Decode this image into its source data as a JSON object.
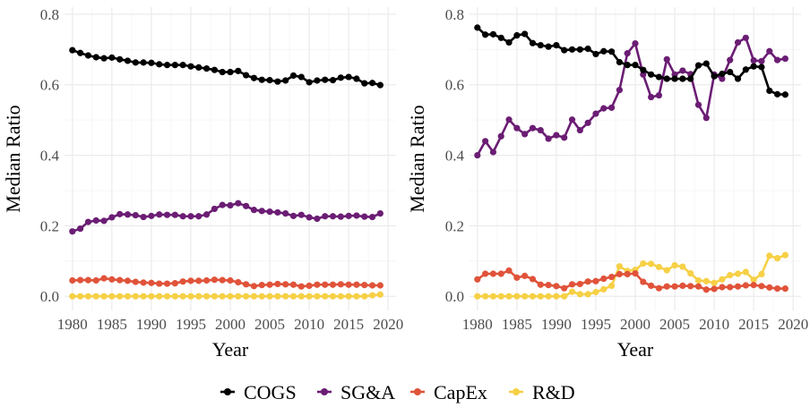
{
  "chart_data": [
    {
      "type": "line",
      "xlabel": "Year",
      "ylabel": "Median Ratio",
      "xlim": [
        1979,
        2021
      ],
      "ylim": [
        -0.04,
        0.82
      ],
      "x_ticks": [
        1980,
        1985,
        1990,
        1995,
        2000,
        2005,
        2010,
        2015,
        2020
      ],
      "y_ticks": [
        0.0,
        0.2,
        0.4,
        0.6,
        0.8
      ],
      "y_tick_labels": [
        "0.0",
        "0.2",
        "0.4",
        "0.6",
        "0.8"
      ],
      "grid": true,
      "x": [
        1980,
        1981,
        1982,
        1983,
        1984,
        1985,
        1986,
        1987,
        1988,
        1989,
        1990,
        1991,
        1992,
        1993,
        1994,
        1995,
        1996,
        1997,
        1998,
        1999,
        2000,
        2001,
        2002,
        2003,
        2004,
        2005,
        2006,
        2007,
        2008,
        2009,
        2010,
        2011,
        2012,
        2013,
        2014,
        2015,
        2016,
        2017,
        2018,
        2019
      ],
      "series": [
        {
          "name": "COGS",
          "values": [
            0.698,
            0.69,
            0.683,
            0.678,
            0.675,
            0.677,
            0.672,
            0.668,
            0.663,
            0.663,
            0.662,
            0.658,
            0.656,
            0.656,
            0.656,
            0.652,
            0.649,
            0.646,
            0.642,
            0.636,
            0.636,
            0.639,
            0.627,
            0.619,
            0.614,
            0.613,
            0.609,
            0.612,
            0.626,
            0.622,
            0.607,
            0.612,
            0.614,
            0.613,
            0.62,
            0.622,
            0.617,
            0.604,
            0.605,
            0.599
          ]
        },
        {
          "name": "SG&A",
          "values": [
            0.184,
            0.192,
            0.211,
            0.215,
            0.214,
            0.224,
            0.233,
            0.232,
            0.23,
            0.225,
            0.228,
            0.232,
            0.231,
            0.231,
            0.227,
            0.227,
            0.227,
            0.232,
            0.248,
            0.259,
            0.258,
            0.264,
            0.256,
            0.245,
            0.242,
            0.24,
            0.238,
            0.235,
            0.228,
            0.231,
            0.224,
            0.22,
            0.227,
            0.227,
            0.226,
            0.228,
            0.229,
            0.226,
            0.225,
            0.235
          ]
        },
        {
          "name": "CapEx",
          "values": [
            0.045,
            0.046,
            0.046,
            0.045,
            0.051,
            0.048,
            0.046,
            0.044,
            0.041,
            0.039,
            0.038,
            0.036,
            0.036,
            0.037,
            0.042,
            0.044,
            0.044,
            0.045,
            0.047,
            0.046,
            0.045,
            0.04,
            0.034,
            0.029,
            0.032,
            0.033,
            0.035,
            0.034,
            0.033,
            0.028,
            0.03,
            0.033,
            0.033,
            0.033,
            0.034,
            0.033,
            0.033,
            0.032,
            0.031,
            0.031
          ]
        },
        {
          "name": "R&D",
          "values": [
            0.0,
            0.0,
            0.0,
            0.0,
            0.0,
            0.0,
            0.0,
            0.0,
            0.0,
            0.0,
            0.0,
            0.0,
            0.0,
            0.0,
            0.0,
            0.0,
            0.0,
            0.0,
            0.0,
            0.0,
            0.0,
            0.0,
            0.0,
            0.0,
            0.0,
            0.0,
            0.0,
            0.0,
            0.0,
            0.0,
            0.0,
            0.0,
            0.0,
            0.0,
            0.0,
            0.0,
            0.0,
            0.0,
            0.003,
            0.005
          ]
        }
      ]
    },
    {
      "type": "line",
      "xlabel": "Year",
      "ylabel": "Median Ratio",
      "xlim": [
        1979,
        2021
      ],
      "ylim": [
        -0.04,
        0.82
      ],
      "x_ticks": [
        1980,
        1985,
        1990,
        1995,
        2000,
        2005,
        2010,
        2015,
        2020
      ],
      "y_ticks": [
        0.0,
        0.2,
        0.4,
        0.6,
        0.8
      ],
      "y_tick_labels": [
        "0.0",
        "0.2",
        "0.4",
        "0.6",
        "0.8"
      ],
      "grid": true,
      "x": [
        1980,
        1981,
        1982,
        1983,
        1984,
        1985,
        1986,
        1987,
        1988,
        1989,
        1990,
        1991,
        1992,
        1993,
        1994,
        1995,
        1996,
        1997,
        1998,
        1999,
        2000,
        2001,
        2002,
        2003,
        2004,
        2005,
        2006,
        2007,
        2008,
        2009,
        2010,
        2011,
        2012,
        2013,
        2014,
        2015,
        2016,
        2017,
        2018,
        2019
      ],
      "series": [
        {
          "name": "COGS",
          "values": [
            0.762,
            0.742,
            0.743,
            0.733,
            0.72,
            0.74,
            0.744,
            0.718,
            0.712,
            0.708,
            0.712,
            0.698,
            0.7,
            0.7,
            0.702,
            0.687,
            0.695,
            0.694,
            0.664,
            0.656,
            0.656,
            0.642,
            0.629,
            0.622,
            0.617,
            0.617,
            0.617,
            0.617,
            0.655,
            0.66,
            0.624,
            0.631,
            0.636,
            0.617,
            0.643,
            0.652,
            0.65,
            0.583,
            0.573,
            0.572
          ]
        },
        {
          "name": "SG&A",
          "values": [
            0.4,
            0.44,
            0.409,
            0.454,
            0.501,
            0.477,
            0.46,
            0.477,
            0.471,
            0.447,
            0.457,
            0.45,
            0.501,
            0.471,
            0.492,
            0.518,
            0.533,
            0.535,
            0.585,
            0.689,
            0.717,
            0.629,
            0.565,
            0.57,
            0.672,
            0.629,
            0.64,
            0.63,
            0.543,
            0.506,
            0.629,
            0.617,
            0.67,
            0.72,
            0.733,
            0.669,
            0.667,
            0.695,
            0.67,
            0.674
          ]
        },
        {
          "name": "CapEx",
          "values": [
            0.048,
            0.064,
            0.064,
            0.064,
            0.073,
            0.053,
            0.058,
            0.049,
            0.033,
            0.032,
            0.029,
            0.023,
            0.034,
            0.035,
            0.042,
            0.043,
            0.05,
            0.055,
            0.063,
            0.063,
            0.065,
            0.041,
            0.03,
            0.023,
            0.028,
            0.028,
            0.03,
            0.029,
            0.028,
            0.019,
            0.021,
            0.026,
            0.026,
            0.028,
            0.031,
            0.032,
            0.029,
            0.025,
            0.022,
            0.022
          ]
        },
        {
          "name": "R&D",
          "values": [
            0.0,
            0.0,
            0.0,
            0.0,
            0.0,
            0.0,
            0.0,
            0.0,
            0.0,
            0.0,
            0.0,
            0.0,
            0.013,
            0.006,
            0.006,
            0.012,
            0.02,
            0.03,
            0.085,
            0.072,
            0.075,
            0.093,
            0.092,
            0.083,
            0.074,
            0.088,
            0.084,
            0.065,
            0.045,
            0.043,
            0.038,
            0.048,
            0.06,
            0.064,
            0.069,
            0.047,
            0.063,
            0.115,
            0.108,
            0.117
          ]
        }
      ]
    }
  ],
  "legend": {
    "position": "bottom",
    "items": [
      {
        "name": "COGS",
        "color": "#000000"
      },
      {
        "name": "SG&A",
        "color": "#6b1d74"
      },
      {
        "name": "CapEx",
        "color": "#e0533a"
      },
      {
        "name": "R&D",
        "color": "#f6d046"
      }
    ]
  }
}
